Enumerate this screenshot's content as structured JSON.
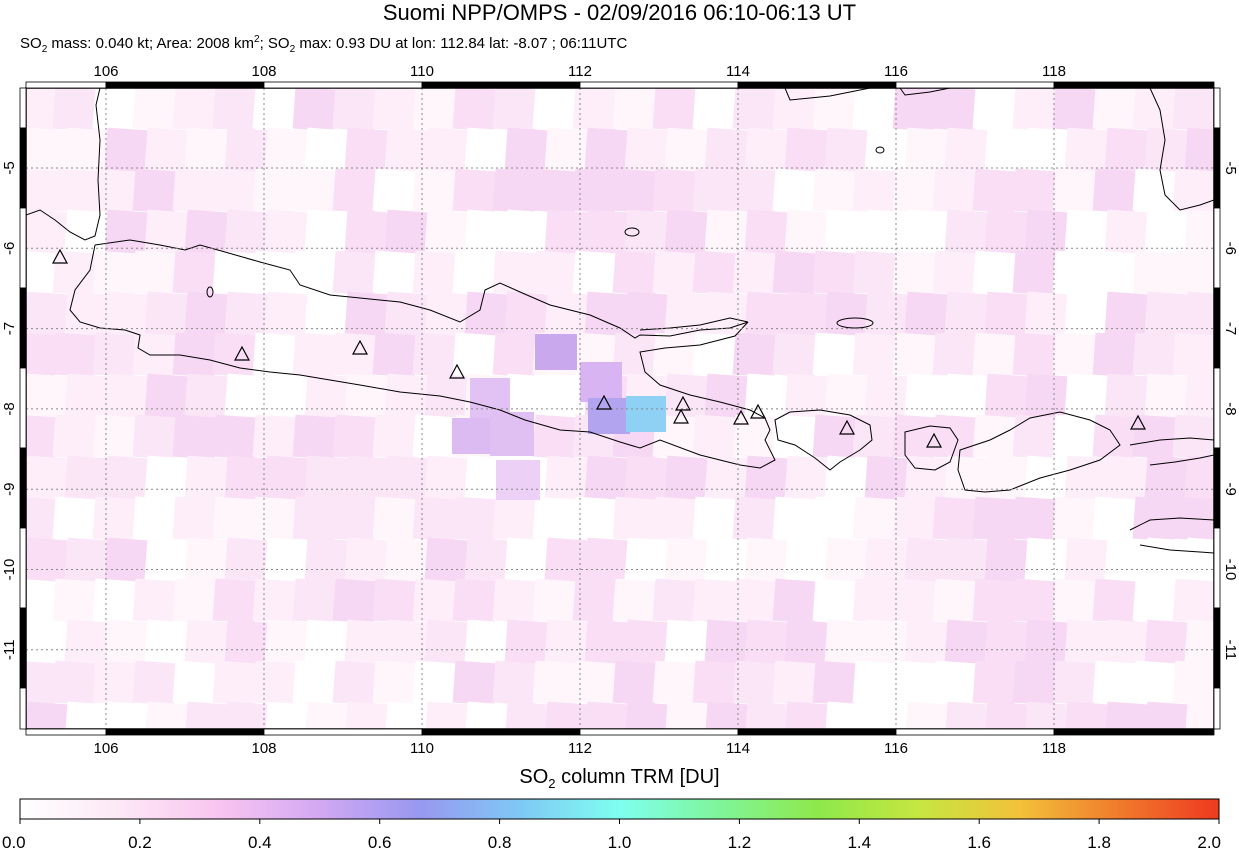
{
  "title": "Suomi NPP/OMPS - 02/09/2016 06:10-06:13 UT",
  "subtitle": {
    "mass_label": "SO",
    "mass_sub": "2",
    "mass_text": " mass: 0.040 kt; Area: 2008 km",
    "area_sup": "2",
    "sep": "; SO",
    "max_sub": "2",
    "max_text": " max: 0.93 DU at lon: 112.84 lat: -8.07 ; 06:11UTC"
  },
  "map": {
    "lon_ticks": [
      "106",
      "108",
      "110",
      "112",
      "114",
      "116",
      "118"
    ],
    "lat_ticks": [
      "-5",
      "-6",
      "-7",
      "-8",
      "-9",
      "-10",
      "-11"
    ],
    "volcano_marker": "triangle-icon"
  },
  "colorbar": {
    "title_prefix": "SO",
    "title_sub": "2",
    "title_suffix": " column TRM [DU]",
    "tick_labels": [
      "0.0",
      "0.2",
      "0.4",
      "0.6",
      "0.8",
      "1.0",
      "1.2",
      "1.4",
      "1.6",
      "1.8",
      "2.0"
    ],
    "colors": [
      "#ffffff",
      "#fde8f6",
      "#f8c4f0",
      "#d3a8f3",
      "#9898f0",
      "#7fc8f5",
      "#7ffff0",
      "#7ff59a",
      "#8fe84a",
      "#c6e640",
      "#f2c23a",
      "#f07a2c",
      "#ee3a20"
    ]
  }
}
